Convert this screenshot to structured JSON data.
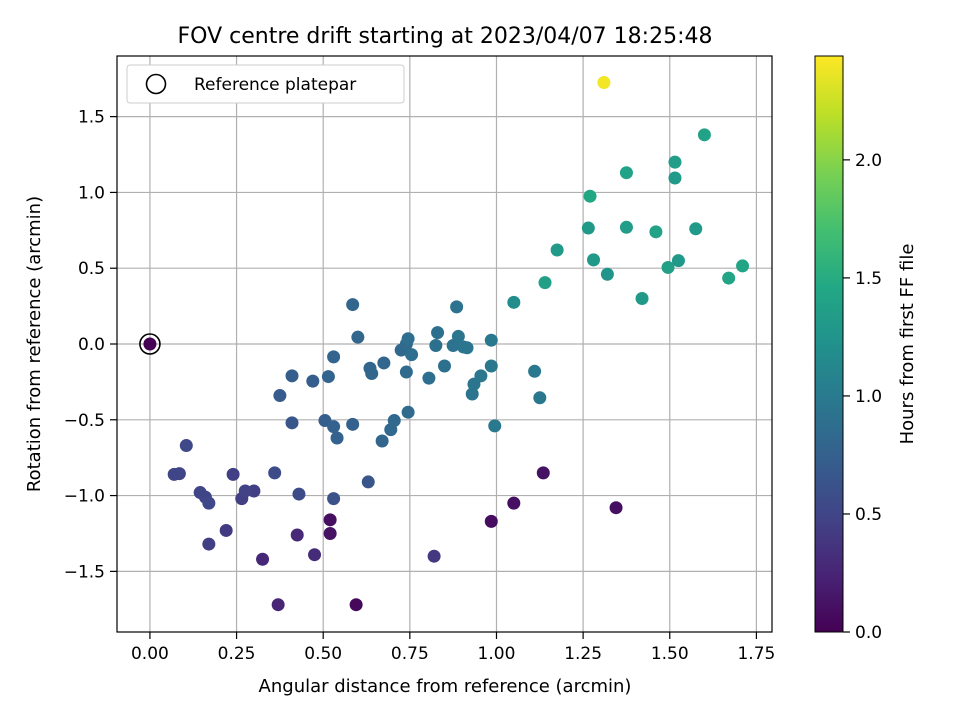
{
  "chart_data": {
    "type": "scatter",
    "title": "FOV centre drift starting at 2023/04/07 18:25:48",
    "xlabel": "Angular distance from reference (arcmin)",
    "ylabel": "Rotation from reference (arcmin)",
    "xlim": [
      -0.095,
      1.795
    ],
    "ylim": [
      -1.9,
      1.9
    ],
    "xticks": [
      0.0,
      0.25,
      0.5,
      0.75,
      1.0,
      1.25,
      1.5,
      1.75
    ],
    "xtick_labels": [
      "0.00",
      "0.25",
      "0.50",
      "0.75",
      "1.00",
      "1.25",
      "1.50",
      "1.75"
    ],
    "yticks": [
      -1.5,
      -1.0,
      -0.5,
      0.0,
      0.5,
      1.0,
      1.5
    ],
    "ytick_labels": [
      "−1.5",
      "−1.0",
      "−0.5",
      "0.0",
      "0.5",
      "1.0",
      "1.5"
    ],
    "grid": true,
    "legend": {
      "position": "top-left",
      "entries": [
        "Reference platepar"
      ]
    },
    "reference_point": {
      "x": 0.0,
      "y": 0.0,
      "label": "Reference platepar"
    },
    "colorbar": {
      "label": "Hours from first FF file",
      "range": [
        0.0,
        2.44
      ],
      "ticks": [
        0.0,
        0.5,
        1.0,
        1.5,
        2.0
      ],
      "tick_labels": [
        "0.0",
        "0.5",
        "1.0",
        "1.5",
        "2.0"
      ],
      "colormap": "viridis"
    },
    "points": [
      {
        "x": 0.0,
        "y": 0.0,
        "c": 0.0
      },
      {
        "x": 0.595,
        "y": -1.72,
        "c": 0.05
      },
      {
        "x": 0.52,
        "y": -1.16,
        "c": 0.1
      },
      {
        "x": 0.52,
        "y": -1.25,
        "c": 0.12
      },
      {
        "x": 0.985,
        "y": -1.17,
        "c": 0.08
      },
      {
        "x": 1.05,
        "y": -1.05,
        "c": 0.1
      },
      {
        "x": 1.135,
        "y": -0.85,
        "c": 0.12
      },
      {
        "x": 1.345,
        "y": -1.08,
        "c": 0.1
      },
      {
        "x": 0.37,
        "y": -1.72,
        "c": 0.25
      },
      {
        "x": 0.325,
        "y": -1.42,
        "c": 0.27
      },
      {
        "x": 0.425,
        "y": -1.26,
        "c": 0.28
      },
      {
        "x": 0.475,
        "y": -1.39,
        "c": 0.3
      },
      {
        "x": 0.82,
        "y": -1.4,
        "c": 0.4
      },
      {
        "x": 0.22,
        "y": -1.23,
        "c": 0.42
      },
      {
        "x": 0.17,
        "y": -1.32,
        "c": 0.45
      },
      {
        "x": 0.3,
        "y": -0.97,
        "c": 0.45
      },
      {
        "x": 0.24,
        "y": -0.86,
        "c": 0.45
      },
      {
        "x": 0.265,
        "y": -1.02,
        "c": 0.45
      },
      {
        "x": 0.275,
        "y": -0.97,
        "c": 0.48
      },
      {
        "x": 0.07,
        "y": -0.86,
        "c": 0.5
      },
      {
        "x": 0.085,
        "y": -0.855,
        "c": 0.5
      },
      {
        "x": 0.105,
        "y": -0.67,
        "c": 0.52
      },
      {
        "x": 0.145,
        "y": -0.98,
        "c": 0.5
      },
      {
        "x": 0.16,
        "y": -1.01,
        "c": 0.5
      },
      {
        "x": 0.17,
        "y": -1.05,
        "c": 0.52
      },
      {
        "x": 0.36,
        "y": -0.85,
        "c": 0.55
      },
      {
        "x": 0.43,
        "y": -0.99,
        "c": 0.55
      },
      {
        "x": 0.53,
        "y": -1.02,
        "c": 0.62
      },
      {
        "x": 0.63,
        "y": -0.91,
        "c": 0.65
      },
      {
        "x": 0.41,
        "y": -0.52,
        "c": 0.65
      },
      {
        "x": 0.375,
        "y": -0.34,
        "c": 0.7
      },
      {
        "x": 0.41,
        "y": -0.21,
        "c": 0.72
      },
      {
        "x": 0.47,
        "y": -0.245,
        "c": 0.72
      },
      {
        "x": 0.505,
        "y": -0.505,
        "c": 0.72
      },
      {
        "x": 0.53,
        "y": -0.545,
        "c": 0.75
      },
      {
        "x": 0.54,
        "y": -0.62,
        "c": 0.75
      },
      {
        "x": 0.585,
        "y": -0.53,
        "c": 0.75
      },
      {
        "x": 0.515,
        "y": -0.215,
        "c": 0.78
      },
      {
        "x": 0.53,
        "y": -0.085,
        "c": 0.78
      },
      {
        "x": 0.585,
        "y": 0.26,
        "c": 0.8
      },
      {
        "x": 0.6,
        "y": 0.045,
        "c": 0.8
      },
      {
        "x": 0.635,
        "y": -0.16,
        "c": 0.8
      },
      {
        "x": 0.64,
        "y": -0.195,
        "c": 0.8
      },
      {
        "x": 0.675,
        "y": -0.125,
        "c": 0.8
      },
      {
        "x": 0.67,
        "y": -0.64,
        "c": 0.8
      },
      {
        "x": 0.695,
        "y": -0.565,
        "c": 0.82
      },
      {
        "x": 0.705,
        "y": -0.505,
        "c": 0.82
      },
      {
        "x": 0.725,
        "y": -0.04,
        "c": 0.82
      },
      {
        "x": 0.74,
        "y": 0.0,
        "c": 0.85
      },
      {
        "x": 0.74,
        "y": -0.185,
        "c": 0.85
      },
      {
        "x": 0.745,
        "y": -0.45,
        "c": 0.85
      },
      {
        "x": 0.745,
        "y": 0.035,
        "c": 0.88
      },
      {
        "x": 0.755,
        "y": -0.07,
        "c": 0.88
      },
      {
        "x": 0.805,
        "y": -0.225,
        "c": 0.88
      },
      {
        "x": 0.825,
        "y": -0.01,
        "c": 0.9
      },
      {
        "x": 0.83,
        "y": 0.075,
        "c": 0.9
      },
      {
        "x": 0.85,
        "y": -0.145,
        "c": 0.9
      },
      {
        "x": 0.875,
        "y": -0.01,
        "c": 0.92
      },
      {
        "x": 0.885,
        "y": 0.245,
        "c": 0.92
      },
      {
        "x": 0.89,
        "y": 0.05,
        "c": 0.95
      },
      {
        "x": 0.905,
        "y": -0.02,
        "c": 0.95
      },
      {
        "x": 0.915,
        "y": -0.025,
        "c": 0.95
      },
      {
        "x": 0.93,
        "y": -0.33,
        "c": 0.95
      },
      {
        "x": 0.935,
        "y": -0.265,
        "c": 0.95
      },
      {
        "x": 0.955,
        "y": -0.21,
        "c": 0.97
      },
      {
        "x": 0.985,
        "y": -0.145,
        "c": 0.97
      },
      {
        "x": 0.985,
        "y": 0.025,
        "c": 0.98
      },
      {
        "x": 0.995,
        "y": -0.54,
        "c": 0.98
      },
      {
        "x": 1.11,
        "y": -0.18,
        "c": 0.98
      },
      {
        "x": 1.125,
        "y": -0.355,
        "c": 0.98
      },
      {
        "x": 1.05,
        "y": 0.275,
        "c": 1.18
      },
      {
        "x": 1.14,
        "y": 0.405,
        "c": 1.38
      },
      {
        "x": 1.175,
        "y": 0.62,
        "c": 1.32
      },
      {
        "x": 1.265,
        "y": 0.765,
        "c": 1.3
      },
      {
        "x": 1.27,
        "y": 0.975,
        "c": 1.45
      },
      {
        "x": 1.28,
        "y": 0.555,
        "c": 1.3
      },
      {
        "x": 1.32,
        "y": 0.46,
        "c": 1.25
      },
      {
        "x": 1.375,
        "y": 1.13,
        "c": 1.4
      },
      {
        "x": 1.375,
        "y": 0.77,
        "c": 1.35
      },
      {
        "x": 1.42,
        "y": 0.3,
        "c": 1.3
      },
      {
        "x": 1.46,
        "y": 0.74,
        "c": 1.4
      },
      {
        "x": 1.495,
        "y": 0.505,
        "c": 1.38
      },
      {
        "x": 1.515,
        "y": 1.2,
        "c": 1.35
      },
      {
        "x": 1.515,
        "y": 1.095,
        "c": 1.32
      },
      {
        "x": 1.525,
        "y": 0.55,
        "c": 1.3
      },
      {
        "x": 1.575,
        "y": 0.76,
        "c": 1.32
      },
      {
        "x": 1.6,
        "y": 1.38,
        "c": 1.4
      },
      {
        "x": 1.67,
        "y": 0.435,
        "c": 1.42
      },
      {
        "x": 1.71,
        "y": 0.515,
        "c": 1.42
      },
      {
        "x": 1.31,
        "y": 1.725,
        "c": 2.4
      }
    ]
  }
}
